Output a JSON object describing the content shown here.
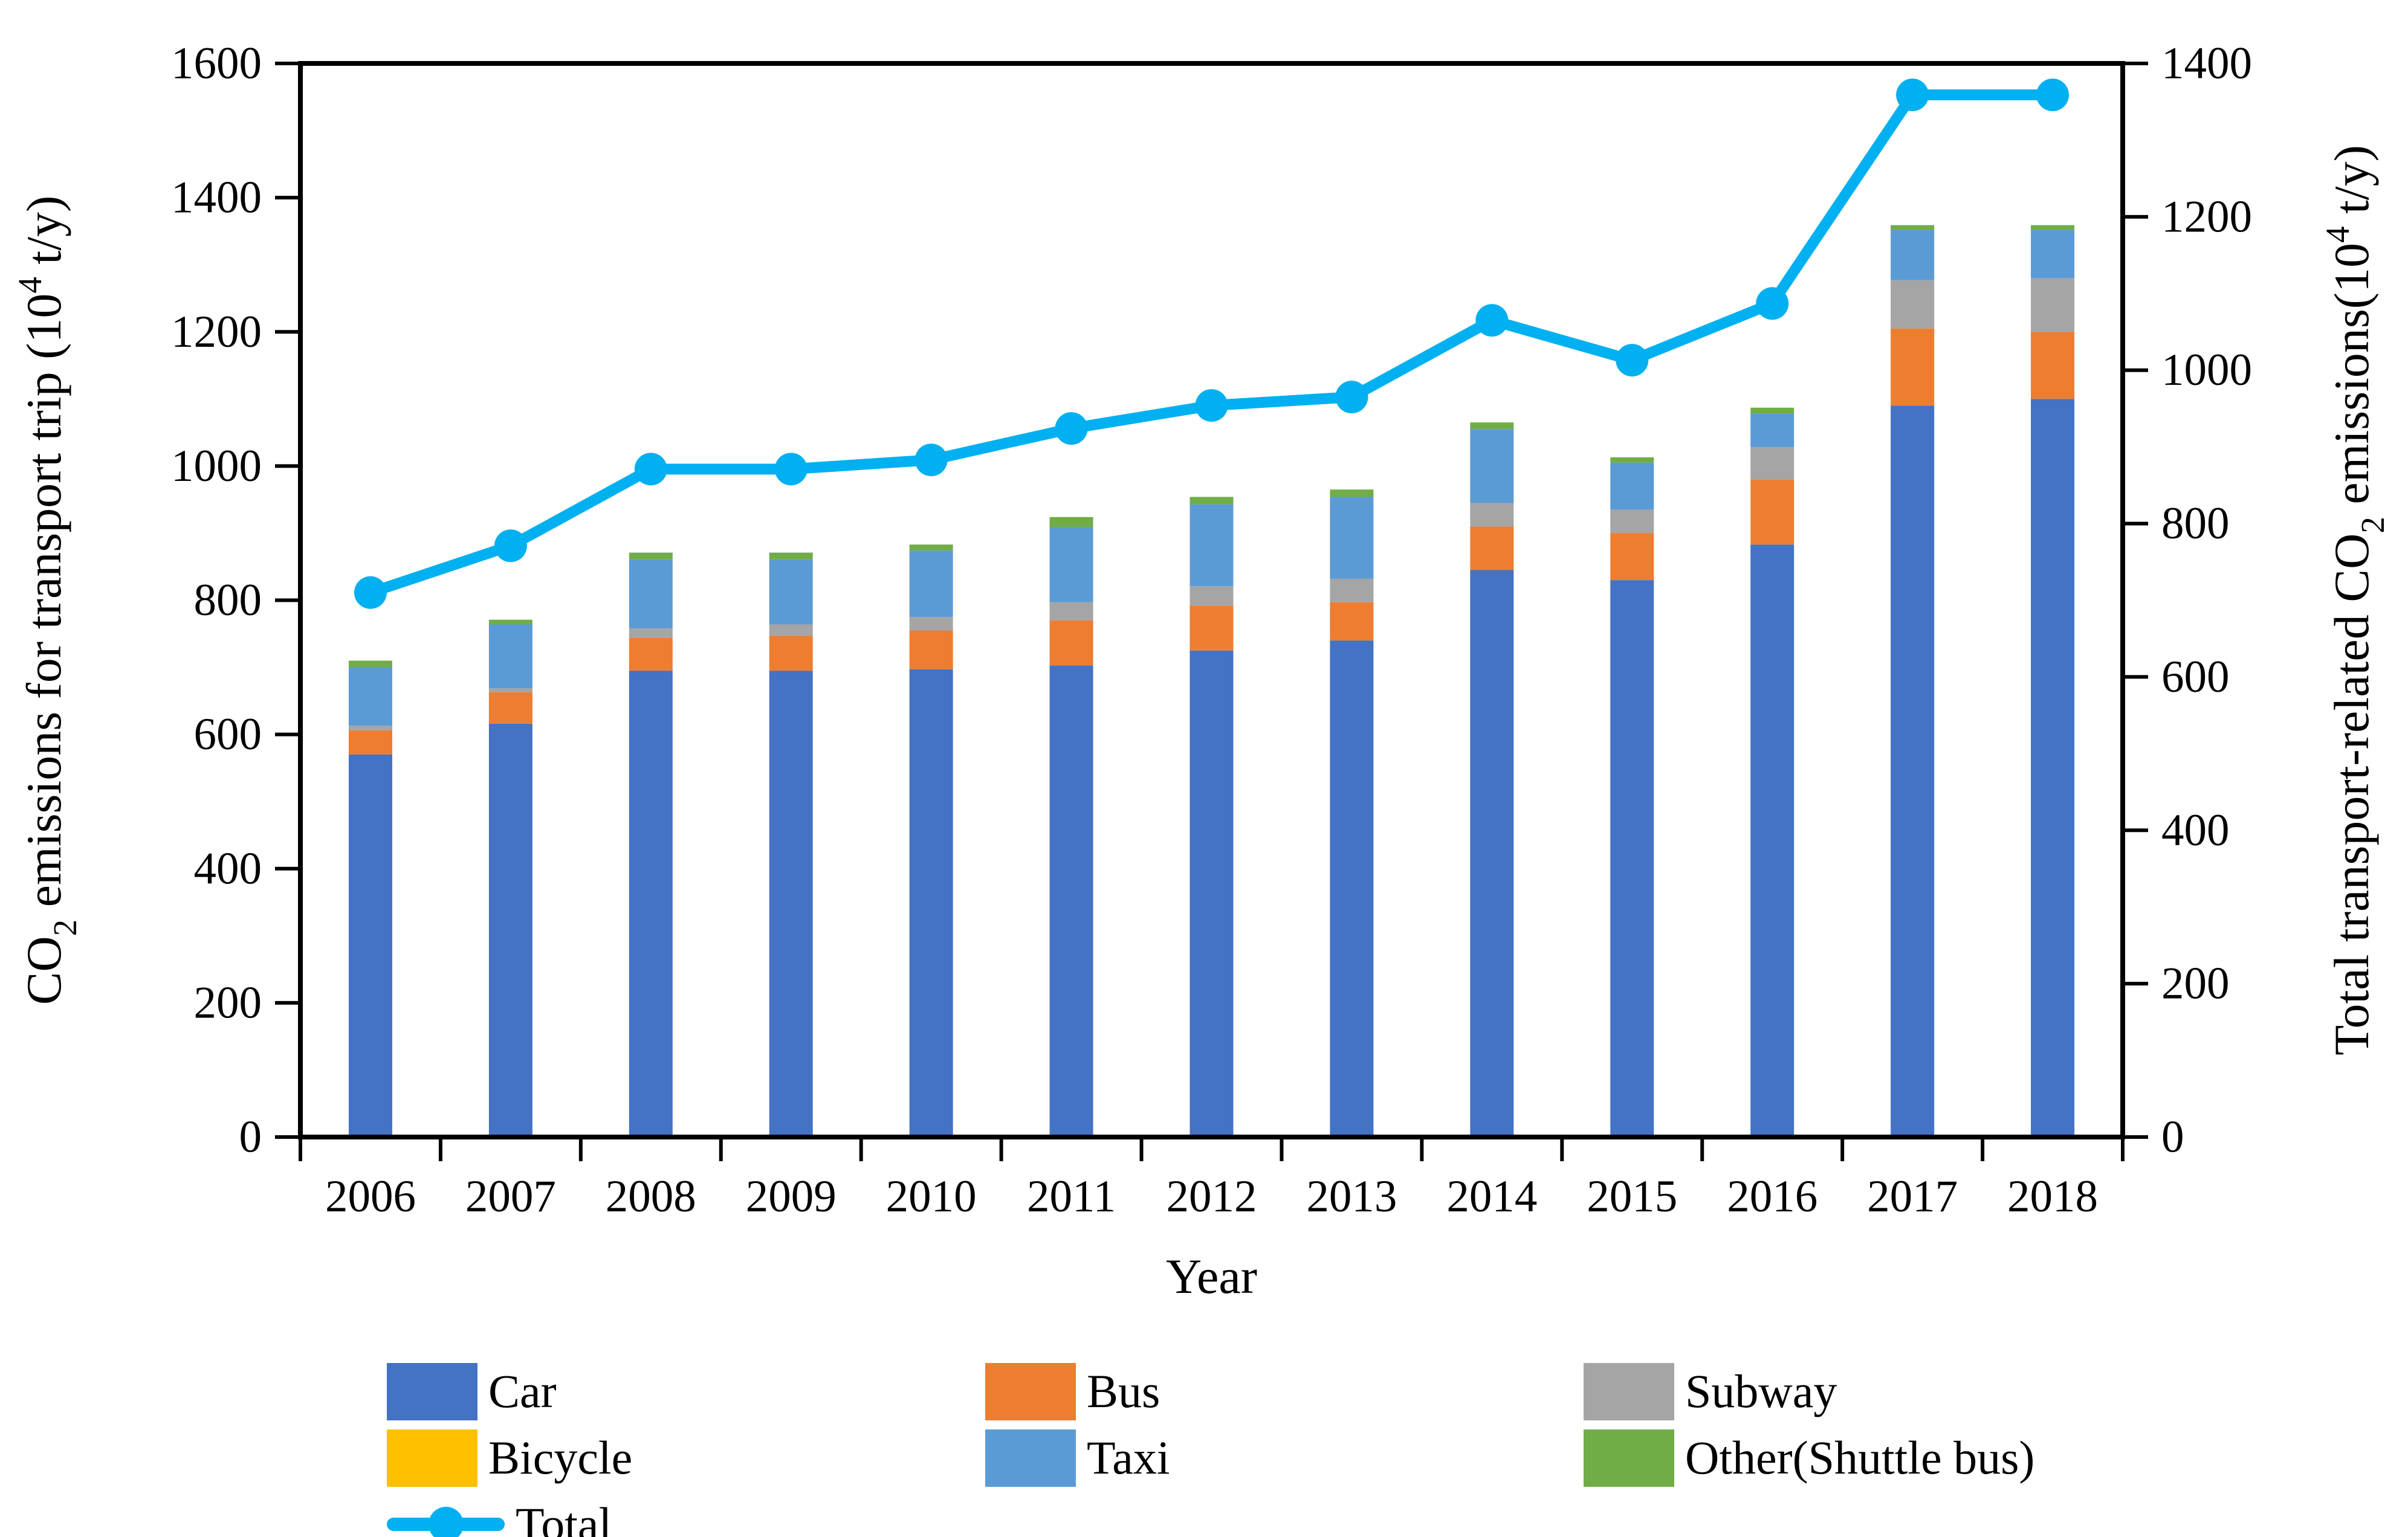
{
  "chart_data": {
    "type": "combo-stacked-bar-line",
    "categories": [
      "2006",
      "2007",
      "2008",
      "2009",
      "2010",
      "2011",
      "2012",
      "2013",
      "2014",
      "2015",
      "2016",
      "2017",
      "2018"
    ],
    "series": [
      {
        "id": "car",
        "name": "Car",
        "color": "#4472C4",
        "values": [
          570,
          616,
          695,
          695,
          697,
          703,
          725,
          740,
          845,
          830,
          883,
          1090,
          1100
        ]
      },
      {
        "id": "bus",
        "name": "Bus",
        "color": "#ED7D31",
        "values": [
          36,
          47,
          49,
          52,
          58,
          67,
          67,
          57,
          65,
          70,
          97,
          115,
          100
        ]
      },
      {
        "id": "subway",
        "name": "Subway",
        "color": "#A5A5A5",
        "values": [
          7,
          6,
          14,
          17,
          20,
          27,
          29,
          35,
          35,
          35,
          48,
          72,
          80
        ]
      },
      {
        "id": "bicycle",
        "name": "Bicycle",
        "color": "#FFC000",
        "values": [
          0,
          0,
          0,
          0,
          0,
          0,
          0,
          0,
          0,
          0,
          0,
          0,
          0
        ]
      },
      {
        "id": "taxi",
        "name": "Taxi",
        "color": "#5B9BD5",
        "values": [
          87,
          95,
          103,
          97,
          99,
          112,
          122,
          122,
          110,
          70,
          50,
          75,
          72
        ]
      },
      {
        "id": "other",
        "name": "Other(Shuttle bus)",
        "color": "#70AD47",
        "values": [
          10,
          7,
          10,
          10,
          9,
          15,
          11,
          11,
          10,
          8,
          9,
          7,
          7
        ]
      }
    ],
    "total": {
      "id": "total",
      "name": "Total",
      "color": "#00B0F0",
      "values": [
        710,
        771,
        871,
        871,
        883,
        924,
        954,
        965,
        1065,
        1013,
        1087,
        1359,
        1359
      ]
    },
    "left_axis": {
      "min": 0,
      "max": 1600,
      "step": 200,
      "title_parts": {
        "pre": "CO",
        "sub": "2",
        "mid": " emissions for transport trip (10",
        "sup": "4",
        "post": " t/y)"
      }
    },
    "right_axis": {
      "min": 0,
      "max": 1400,
      "step": 200,
      "title_parts": {
        "pre": "Total transport-related CO",
        "sub": "2",
        "mid": " emissions(10",
        "sup": "4",
        "post": " t/y)"
      }
    },
    "x_axis": {
      "title": "Year"
    },
    "legend_position": "bottom",
    "grid": false,
    "frame_color": "#000000",
    "background": "#ffffff"
  }
}
